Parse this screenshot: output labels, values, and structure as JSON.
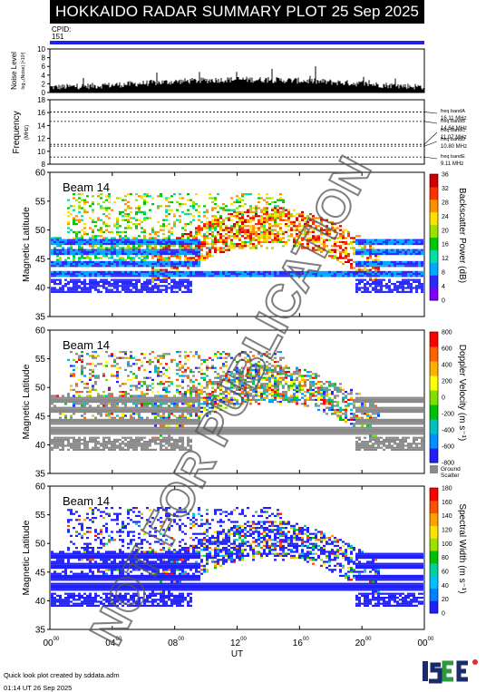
{
  "header": {
    "title": "HOKKAIDO RADAR SUMMARY PLOT",
    "date": "25 Sep 2025"
  },
  "cpid": {
    "label": "CPID:",
    "value": "151"
  },
  "noise_panel": {
    "ylabel": "Noise Level",
    "ylabel_sub": "log₁₀(Noise) [×10³]",
    "yticks": [
      "0",
      "2",
      "4",
      "6",
      "8",
      "10"
    ]
  },
  "freq_panel": {
    "ylabel": "Frequency",
    "ylabel_sub": "(MHz)",
    "yticks": [
      "8",
      "10",
      "12",
      "14",
      "16",
      "18"
    ],
    "bands": [
      {
        "name": "freq bandA",
        "value": "16.11 MHz"
      },
      {
        "name": "freq bandB",
        "value": "14.64 MHz"
      },
      {
        "name": "freq bandC",
        "value": "11.07 MHz"
      },
      {
        "name": "freq bandD",
        "value": "10.80 MHz"
      },
      {
        "name": "freq bandE",
        "value": "9.11 MHz"
      }
    ]
  },
  "panels": [
    {
      "beam": "Beam 14",
      "ylabel": "Magnetic Latitude",
      "cbar_label": "Backscatter Power (dB)",
      "cbar_ticks": [
        "0",
        "4",
        "8",
        "12",
        "16",
        "20",
        "24",
        "28",
        "32",
        "36"
      ]
    },
    {
      "beam": "Beam 14",
      "ylabel": "Magnetic Latitude",
      "cbar_label": "Doppler Velocity (m s⁻¹)",
      "cbar_ticks": [
        "-800",
        "-600",
        "-400",
        "-200",
        "0",
        "200",
        "400",
        "600",
        "800"
      ],
      "ground_label": [
        "Ground",
        "Scatter"
      ]
    },
    {
      "beam": "Beam 14",
      "ylabel": "Magnetic Latitude",
      "cbar_label": "Spectral Width (m s⁻¹)",
      "cbar_ticks": [
        "0",
        "20",
        "40",
        "60",
        "80",
        "100",
        "120",
        "140",
        "160",
        "180"
      ]
    }
  ],
  "lat_ticks": [
    "35",
    "40",
    "45",
    "50",
    "55",
    "60"
  ],
  "time_ticks": [
    "00",
    "04",
    "08",
    "12",
    "16",
    "20",
    "00"
  ],
  "time_tick_sup": "00",
  "xlabel": "UT",
  "watermark": "NOT FOR PUBLICATION",
  "credit": {
    "line1": "Quick look plot created by sddata.adm",
    "line2": "01:14 UT 26 Sep 2025"
  },
  "logo_text": "ISEE",
  "colors": {
    "header_bg": "#000000",
    "cpid_bar": "#2222ee",
    "ground_scatter": "#8a8a8a",
    "power_scale": [
      "#7f00ff",
      "#2a2aff",
      "#00a8ff",
      "#00e0a0",
      "#00c800",
      "#a0e000",
      "#ffe000",
      "#ff9000",
      "#ff3000",
      "#d00000"
    ],
    "vel_scale": [
      "#2020ff",
      "#0090ff",
      "#00c0c0",
      "#00c000",
      "#80e000",
      "#ffff00",
      "#ffb000",
      "#ff6000",
      "#ff0000"
    ],
    "width_scale": [
      "#2020ff",
      "#0080ff",
      "#00c0ff",
      "#00d0a0",
      "#00c000",
      "#a0e000",
      "#ffe000",
      "#ffa000",
      "#ff5000",
      "#ff0000"
    ]
  },
  "chart_data": [
    {
      "type": "line",
      "title": "Noise Level",
      "ylim": [
        0,
        10
      ],
      "xlim_ut_hours": [
        0,
        24
      ],
      "x": [
        0,
        2,
        4,
        6,
        8,
        10,
        12,
        14,
        16,
        18,
        20,
        22,
        24
      ],
      "values": [
        1.2,
        1.4,
        1.7,
        2.1,
        2.5,
        2.8,
        3.0,
        2.9,
        2.7,
        2.4,
        2.0,
        1.6,
        1.3
      ]
    },
    {
      "type": "line",
      "title": "Frequency",
      "ylim": [
        8,
        18
      ],
      "xlim_ut_hours": [
        0,
        24
      ],
      "x": [
        0,
        24
      ],
      "series": [
        {
          "name": "freq bandA",
          "values": [
            16.11,
            16.11
          ]
        },
        {
          "name": "freq bandB",
          "values": [
            14.64,
            14.64
          ]
        },
        {
          "name": "freq bandC",
          "values": [
            11.07,
            11.07
          ]
        },
        {
          "name": "freq bandD",
          "values": [
            10.8,
            10.8
          ]
        },
        {
          "name": "freq bandE",
          "values": [
            9.11,
            9.11
          ]
        }
      ]
    },
    {
      "type": "heatmap",
      "title": "Beam 14",
      "ylabel": "Magnetic Latitude",
      "xlabel": "UT",
      "ylim": [
        35,
        60
      ],
      "xlim_ut_hours": [
        0,
        24
      ],
      "zlabel": "Backscatter Power (dB)",
      "zlim": [
        0,
        36
      ]
    },
    {
      "type": "heatmap",
      "title": "Beam 14",
      "ylabel": "Magnetic Latitude",
      "xlabel": "UT",
      "ylim": [
        35,
        60
      ],
      "xlim_ut_hours": [
        0,
        24
      ],
      "zlabel": "Doppler Velocity (m s⁻¹)",
      "zlim": [
        -800,
        800
      ]
    },
    {
      "type": "heatmap",
      "title": "Beam 14",
      "ylabel": "Magnetic Latitude",
      "xlabel": "UT",
      "ylim": [
        35,
        60
      ],
      "xlim_ut_hours": [
        0,
        24
      ],
      "zlabel": "Spectral Width (m s⁻¹)",
      "zlim": [
        0,
        180
      ]
    }
  ]
}
